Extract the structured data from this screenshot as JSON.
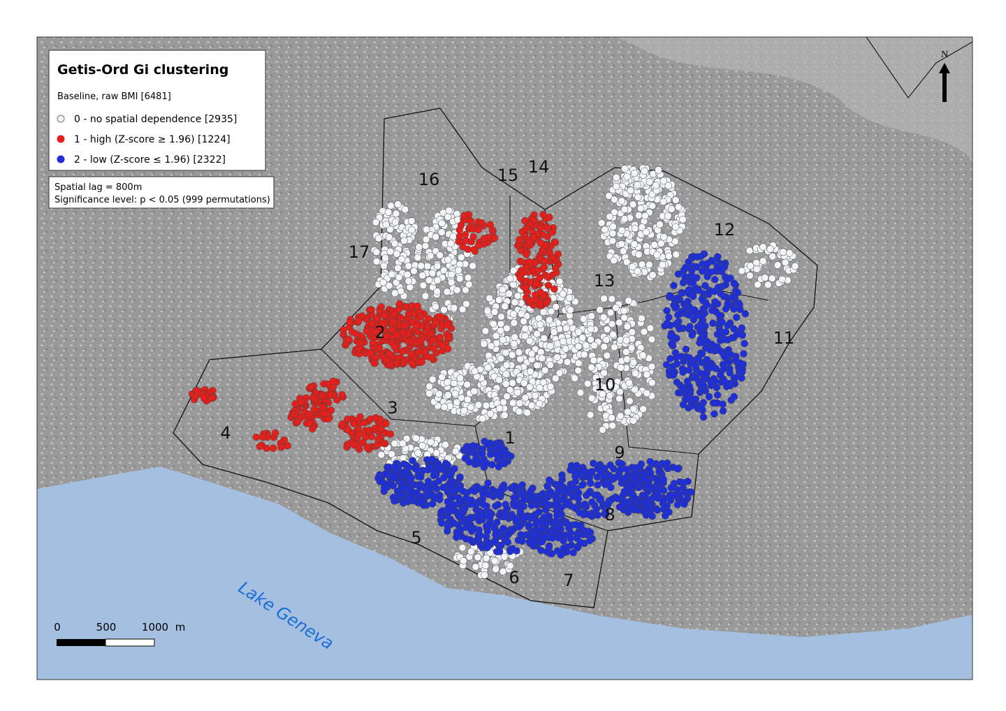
{
  "legend": {
    "title": "Getis-Ord Gi clustering",
    "subtitle": "Baseline, raw BMI [6481]",
    "items": [
      {
        "label": "0 - no spatial dependence [2935]",
        "color": "#f4f6fa"
      },
      {
        "label": "1 - high (Z-score ≥ 1.96) [1224]",
        "color": "#e3201b"
      },
      {
        "label": "2 - low (Z-score ≤ 1.96) [2322]",
        "color": "#1f2fd8"
      }
    ]
  },
  "notes": [
    "Spatial lag = 800m",
    "Significance level: p < 0.05 (999 permutations)"
  ],
  "districts": [
    "1",
    "2",
    "3",
    "4",
    "5",
    "6",
    "7",
    "8",
    "9",
    "10",
    "11",
    "12",
    "13",
    "14",
    "15",
    "16",
    "17"
  ],
  "lake": "Lake Geneva",
  "north": "N",
  "scale": {
    "labels": [
      "0",
      "500",
      "1000"
    ],
    "unit": "m"
  }
}
